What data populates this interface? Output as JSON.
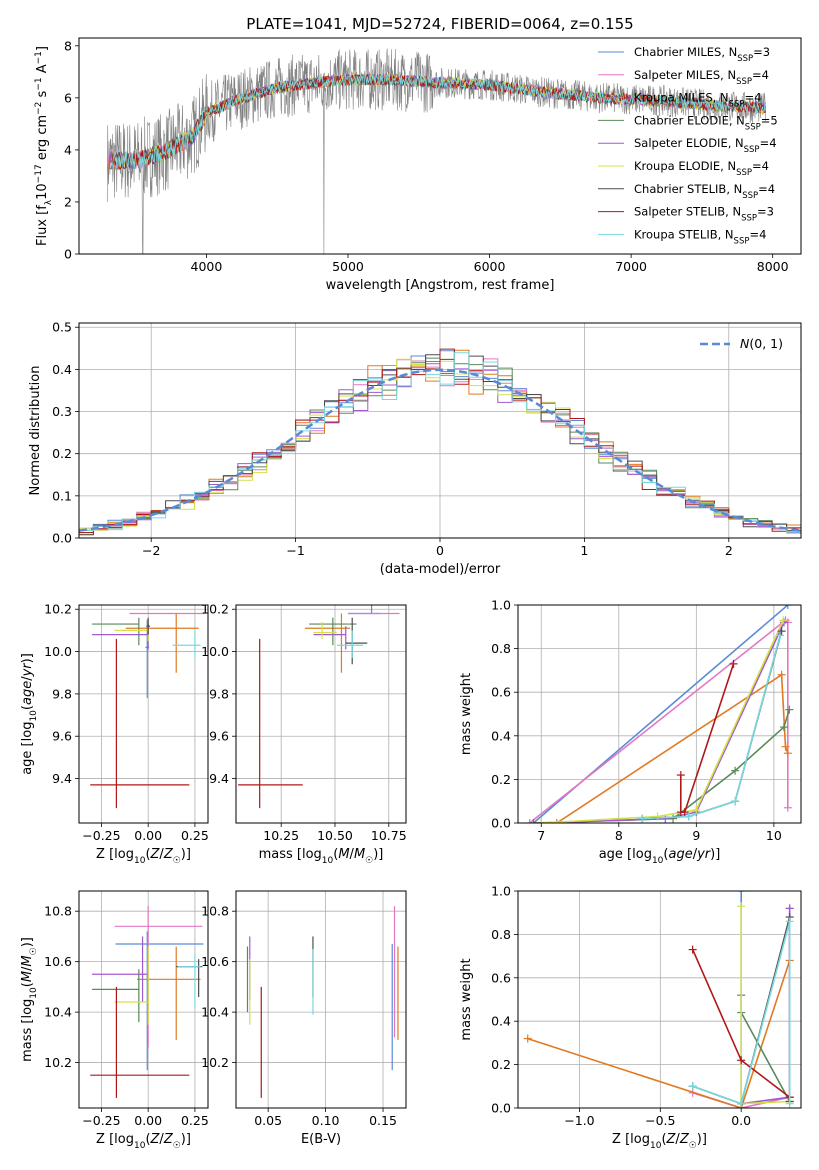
{
  "figure": {
    "title": "PLATE=1041, MJD=52724, FIBERID=0064, z=0.155"
  },
  "colors": {
    "data_gray": "#808080",
    "grid": "#b0b0b0",
    "gaussian": "#5a8ad6"
  },
  "models": [
    {
      "name": "Chabrier MILES",
      "nssp": "3",
      "color": "#5b8bd6"
    },
    {
      "name": "Salpeter MILES",
      "nssp": "4",
      "color": "#e377c2"
    },
    {
      "name": "Kroupa MILES",
      "nssp": "4",
      "color": "#e07a22"
    },
    {
      "name": "Chabrier ELODIE",
      "nssp": "5",
      "color": "#5a8a5a"
    },
    {
      "name": "Salpeter ELODIE",
      "nssp": "4",
      "color": "#a05ad0"
    },
    {
      "name": "Kroupa ELODIE",
      "nssp": "4",
      "color": "#d4e04a"
    },
    {
      "name": "Chabrier STELIB",
      "nssp": "4",
      "color": "#4d4d4d"
    },
    {
      "name": "Salpeter STELIB",
      "nssp": "3",
      "color": "#b01818"
    },
    {
      "name": "Kroupa STELIB",
      "nssp": "4",
      "color": "#78d8e0"
    }
  ],
  "chart_data": [
    {
      "id": "spectrum",
      "type": "line",
      "xlabel": "wavelength [Angstrom, rest frame]",
      "ylabel": "Flux [f_λ 10^-17 erg cm^-2 s^-1 A^-1]",
      "xlim": [
        3100,
        8200
      ],
      "ylim": [
        0,
        8.3
      ],
      "xticks": [
        4000,
        5000,
        6000,
        7000,
        8000
      ],
      "yticks": [
        0,
        2,
        4,
        6,
        8
      ],
      "grid": false,
      "legend": "right",
      "continuum": {
        "x": [
          3300,
          3500,
          3700,
          3900,
          4000,
          4200,
          4500,
          4800,
          5000,
          5300,
          5600,
          6000,
          6400,
          6800,
          7200,
          7600,
          7950
        ],
        "y": [
          3.6,
          3.6,
          3.9,
          4.5,
          5.4,
          5.9,
          6.4,
          6.6,
          6.7,
          6.7,
          6.6,
          6.5,
          6.2,
          6.0,
          5.9,
          5.7,
          5.6
        ]
      }
    },
    {
      "id": "residuals",
      "type": "line",
      "xlabel": "(data-model)/error",
      "ylabel": "Normed distribution",
      "xlim": [
        -2.5,
        2.5
      ],
      "ylim": [
        0,
        0.51
      ],
      "xticks": [
        -2,
        -1,
        0,
        1,
        2
      ],
      "yticks": [
        0.0,
        0.1,
        0.2,
        0.3,
        0.4,
        0.5
      ],
      "grid": true,
      "legend": "top-right",
      "gaussian_label": "N(0,1)"
    },
    {
      "id": "age-vs-Z",
      "type": "scatter",
      "xlabel": "Z [log10(Z/Z☉)]",
      "ylabel": "age  [log10(age/yr)]",
      "xlim": [
        -0.37,
        0.32
      ],
      "ylim": [
        9.19,
        10.22
      ],
      "xticks": [
        -0.25,
        0.0,
        0.25
      ],
      "yticks": [
        9.4,
        9.6,
        9.8,
        10.0,
        10.2
      ],
      "grid": true,
      "points": [
        {
          "model": 0,
          "x": -0.005,
          "y": 10.02,
          "xerr": [
            0.01,
            0.01
          ],
          "yerr": [
            0.24,
            0.13
          ]
        },
        {
          "model": 1,
          "x": 0.15,
          "y": 10.18,
          "xerr": [
            0.25,
            0.15
          ],
          "yerr": [
            0.0,
            0.0
          ]
        },
        {
          "model": 2,
          "x": 0.15,
          "y": 10.11,
          "xerr": [
            0.27,
            0.12
          ],
          "yerr": [
            0.21,
            0.07
          ]
        },
        {
          "model": 3,
          "x": -0.05,
          "y": 10.13,
          "xerr": [
            0.25,
            0.0
          ],
          "yerr": [
            0.1,
            0.03
          ]
        },
        {
          "model": 4,
          "x": 0.0,
          "y": 10.08,
          "xerr": [
            0.3,
            0.0
          ],
          "yerr": [
            0.07,
            0.05
          ]
        },
        {
          "model": 5,
          "x": 0.0,
          "y": 10.1,
          "xerr": [
            0.18,
            0.0
          ],
          "yerr": [
            0.05,
            0.05
          ]
        },
        {
          "model": 6,
          "x": 0.0,
          "y": 10.12,
          "xerr": [
            0.01,
            0.01
          ],
          "yerr": [
            0.04,
            0.04
          ]
        },
        {
          "model": 7,
          "x": -0.17,
          "y": 9.37,
          "xerr": [
            0.14,
            0.39
          ],
          "yerr": [
            0.11,
            0.69
          ]
        },
        {
          "model": 8,
          "x": 0.25,
          "y": 10.03,
          "xerr": [
            0.12,
            0.03
          ],
          "yerr": [
            0.06,
            0.07
          ]
        }
      ]
    },
    {
      "id": "age-vs-mass",
      "type": "scatter",
      "xlabel": "mass [log10(M/M☉)]",
      "ylabel": "",
      "xlim": [
        10.04,
        10.83
      ],
      "ylim": [
        9.19,
        10.22
      ],
      "xticks": [
        10.25,
        10.5,
        10.75
      ],
      "yticks": [
        9.4,
        9.6,
        9.8,
        10.0,
        10.2
      ],
      "grid": true,
      "points": [
        {
          "model": 0,
          "x": 10.67,
          "y": 10.18,
          "xerr": [
            0.11,
            0.04
          ],
          "yerr": [
            0.0,
            0.4
          ]
        },
        {
          "model": 1,
          "x": 10.74,
          "y": 10.18,
          "xerr": [
            0.18,
            0.06
          ],
          "yerr": [
            0.0,
            0.0
          ]
        },
        {
          "model": 2,
          "x": 10.53,
          "y": 10.11,
          "xerr": [
            0.17,
            0.04
          ],
          "yerr": [
            0.21,
            0.07
          ]
        },
        {
          "model": 3,
          "x": 10.49,
          "y": 10.13,
          "xerr": [
            0.11,
            0.11
          ],
          "yerr": [
            0.1,
            0.03
          ]
        },
        {
          "model": 4,
          "x": 10.55,
          "y": 10.08,
          "xerr": [
            0.15,
            0.0
          ],
          "yerr": [
            0.07,
            0.04
          ]
        },
        {
          "model": 5,
          "x": 10.44,
          "y": 10.09,
          "xerr": [
            0.04,
            0.07
          ],
          "yerr": [
            0.03,
            0.05
          ]
        },
        {
          "model": 6,
          "x": 10.58,
          "y": 10.04,
          "xerr": [
            0.03,
            0.07
          ],
          "yerr": [
            0.1,
            0.12
          ]
        },
        {
          "model": 7,
          "x": 10.15,
          "y": 9.37,
          "xerr": [
            0.1,
            0.2
          ],
          "yerr": [
            0.11,
            0.69
          ]
        },
        {
          "model": 8,
          "x": 10.58,
          "y": 10.03,
          "xerr": [
            0.07,
            0.05
          ],
          "yerr": [
            0.06,
            0.07
          ]
        }
      ]
    },
    {
      "id": "massweight-vs-age",
      "type": "line",
      "xlabel": "age  [log10(age/yr)]",
      "ylabel": "mass weight",
      "xlim": [
        6.7,
        10.35
      ],
      "ylim": [
        0,
        1.0
      ],
      "xticks": [
        7,
        8,
        9,
        10
      ],
      "yticks": [
        0.0,
        0.2,
        0.4,
        0.6,
        0.8,
        1.0
      ],
      "grid": true,
      "series": [
        {
          "model": 0,
          "x": [
            6.9,
            10.18
          ],
          "y": [
            0.0,
            1.0
          ]
        },
        {
          "model": 1,
          "x": [
            6.85,
            10.15,
            10.18,
            10.18
          ],
          "y": [
            0.0,
            0.93,
            0.92,
            0.07
          ]
        },
        {
          "model": 2,
          "x": [
            7.2,
            10.1,
            10.15,
            10.18
          ],
          "y": [
            0.0,
            0.68,
            0.35,
            0.32
          ]
        },
        {
          "model": 3,
          "x": [
            6.9,
            8.7,
            9.5,
            10.13,
            10.2
          ],
          "y": [
            0.0,
            0.02,
            0.24,
            0.44,
            0.52
          ]
        },
        {
          "model": 4,
          "x": [
            7.0,
            8.6,
            9.0,
            10.13
          ],
          "y": [
            0.0,
            0.02,
            0.05,
            0.92
          ]
        },
        {
          "model": 5,
          "x": [
            7.0,
            8.5,
            9.0,
            10.12
          ],
          "y": [
            0.0,
            0.03,
            0.06,
            0.93
          ]
        },
        {
          "model": 6,
          "x": [
            8.3,
            8.9,
            9.5,
            10.1
          ],
          "y": [
            0.02,
            0.03,
            0.1,
            0.88
          ]
        },
        {
          "model": 7,
          "x": [
            8.8,
            8.8,
            8.85,
            9.48
          ],
          "y": [
            0.22,
            0.05,
            0.05,
            0.73
          ]
        },
        {
          "model": 8,
          "x": [
            8.3,
            8.9,
            9.5,
            10.08
          ],
          "y": [
            0.02,
            0.03,
            0.1,
            0.86
          ]
        }
      ]
    },
    {
      "id": "mass-vs-Z",
      "type": "scatter",
      "xlabel": "Z [log10(Z/Z☉)]",
      "ylabel": "mass [log10(M/M☉)]",
      "xlim": [
        -0.37,
        0.32
      ],
      "ylim": [
        10.02,
        10.88
      ],
      "xticks": [
        -0.25,
        0.0,
        0.25
      ],
      "yticks": [
        10.2,
        10.4,
        10.6,
        10.8
      ],
      "grid": true,
      "points": [
        {
          "model": 0,
          "x": -0.005,
          "y": 10.67,
          "xerr": [
            0.17,
            0.3
          ],
          "yerr": [
            0.5,
            0.05
          ]
        },
        {
          "model": 1,
          "x": 0.0,
          "y": 10.74,
          "xerr": [
            0.18,
            0.29
          ],
          "yerr": [
            0.48,
            0.08
          ]
        },
        {
          "model": 2,
          "x": 0.15,
          "y": 10.53,
          "xerr": [
            0.21,
            0.13
          ],
          "yerr": [
            0.24,
            0.13
          ]
        },
        {
          "model": 3,
          "x": -0.05,
          "y": 10.49,
          "xerr": [
            0.25,
            0.0
          ],
          "yerr": [
            0.13,
            0.08
          ]
        },
        {
          "model": 4,
          "x": -0.03,
          "y": 10.55,
          "xerr": [
            0.27,
            0.03
          ],
          "yerr": [
            0.11,
            0.15
          ]
        },
        {
          "model": 5,
          "x": 0.0,
          "y": 10.44,
          "xerr": [
            0.18,
            0.0
          ],
          "yerr": [
            0.09,
            0.22
          ]
        },
        {
          "model": 6,
          "x": 0.27,
          "y": 10.58,
          "xerr": [
            0.12,
            0.02
          ],
          "yerr": [
            0.12,
            0.03
          ]
        },
        {
          "model": 7,
          "x": -0.17,
          "y": 10.15,
          "xerr": [
            0.14,
            0.39
          ],
          "yerr": [
            0.09,
            0.35
          ]
        },
        {
          "model": 8,
          "x": 0.25,
          "y": 10.58,
          "xerr": [
            0.09,
            0.03
          ],
          "yerr": [
            0.16,
            0.05
          ]
        }
      ]
    },
    {
      "id": "mass-vs-ebv",
      "type": "scatter",
      "xlabel": "E(B-V)",
      "ylabel": "",
      "xlim": [
        0.022,
        0.17
      ],
      "ylim": [
        10.02,
        10.88
      ],
      "xticks": [
        0.05,
        0.1,
        0.15
      ],
      "yticks": [
        10.2,
        10.4,
        10.6,
        10.8
      ],
      "grid": true,
      "points": [
        {
          "model": 0,
          "x": 0.158,
          "y": 10.45,
          "xerr": [
            0,
            0
          ],
          "yerr": [
            0.28,
            0.22
          ]
        },
        {
          "model": 1,
          "x": 0.16,
          "y": 10.5,
          "xerr": [
            0,
            0
          ],
          "yerr": [
            0.2,
            0.32
          ]
        },
        {
          "model": 2,
          "x": 0.163,
          "y": 10.47,
          "xerr": [
            0,
            0
          ],
          "yerr": [
            0.18,
            0.19
          ]
        },
        {
          "model": 3,
          "x": 0.032,
          "y": 10.5,
          "xerr": [
            0,
            0
          ],
          "yerr": [
            0.1,
            0.16
          ]
        },
        {
          "model": 4,
          "x": 0.034,
          "y": 10.55,
          "xerr": [
            0,
            0
          ],
          "yerr": [
            0.1,
            0.15
          ]
        },
        {
          "model": 5,
          "x": 0.034,
          "y": 10.44,
          "xerr": [
            0,
            0
          ],
          "yerr": [
            0.09,
            0.17
          ]
        },
        {
          "model": 6,
          "x": 0.089,
          "y": 10.58,
          "xerr": [
            0,
            0
          ],
          "yerr": [
            0.12,
            0.12
          ]
        },
        {
          "model": 7,
          "x": 0.044,
          "y": 10.28,
          "xerr": [
            0,
            0
          ],
          "yerr": [
            0.22,
            0.22
          ]
        },
        {
          "model": 8,
          "x": 0.089,
          "y": 10.52,
          "xerr": [
            0,
            0
          ],
          "yerr": [
            0.13,
            0.13
          ]
        }
      ]
    },
    {
      "id": "massweight-vs-Z",
      "type": "line",
      "xlabel": "Z [log10(Z/Z☉)]",
      "ylabel": "mass weight",
      "xlim": [
        -1.38,
        0.37
      ],
      "ylim": [
        0,
        1.0
      ],
      "xticks": [
        -1.0,
        -0.5,
        0.0
      ],
      "yticks": [
        0.0,
        0.2,
        0.4,
        0.6,
        0.8,
        1.0
      ],
      "grid": true,
      "series": [
        {
          "model": 0,
          "x": [
            0.0,
            0.0
          ],
          "y": [
            0.0,
            1.0
          ]
        },
        {
          "model": 1,
          "x": [
            -0.3,
            0.0,
            0.3,
            0.3
          ],
          "y": [
            0.07,
            0.0,
            0.05,
            0.92
          ]
        },
        {
          "model": 2,
          "x": [
            -1.32,
            0.0,
            0.3
          ],
          "y": [
            0.32,
            0.0,
            0.68
          ]
        },
        {
          "model": 3,
          "x": [
            0.0,
            0.0,
            0.3
          ],
          "y": [
            0.52,
            0.44,
            0.03
          ]
        },
        {
          "model": 4,
          "x": [
            0.0,
            0.3,
            0.3
          ],
          "y": [
            0.02,
            0.05,
            0.92
          ]
        },
        {
          "model": 5,
          "x": [
            0.0,
            0.0,
            0.3
          ],
          "y": [
            0.93,
            0.02,
            0.03
          ]
        },
        {
          "model": 6,
          "x": [
            -0.3,
            0.0,
            0.3,
            0.3
          ],
          "y": [
            0.1,
            0.02,
            0.88,
            0.03
          ]
        },
        {
          "model": 7,
          "x": [
            -0.3,
            0.0,
            0.3
          ],
          "y": [
            0.73,
            0.22,
            0.05
          ]
        },
        {
          "model": 8,
          "x": [
            -0.3,
            0.0,
            0.3,
            0.3
          ],
          "y": [
            0.1,
            0.02,
            0.86,
            0.02
          ]
        }
      ]
    }
  ]
}
